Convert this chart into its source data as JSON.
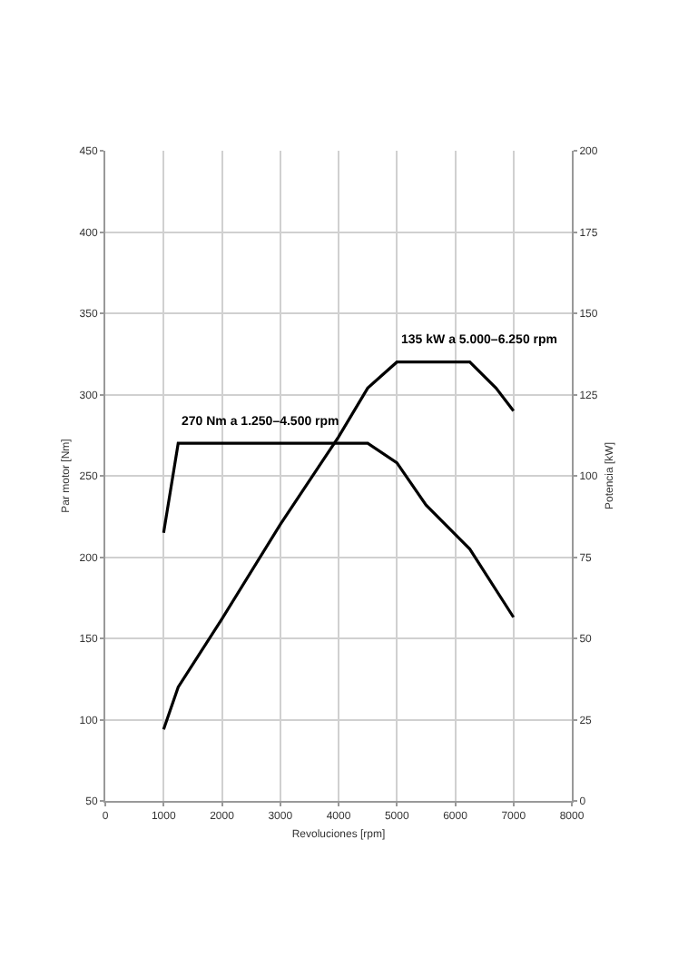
{
  "chart_data": {
    "type": "line",
    "xlabel": "Revoluciones [rpm]",
    "ylabel": "Par motor [Nm]",
    "y2label": "Potencia [kW]",
    "xlim": [
      0,
      8000
    ],
    "xticks": [
      0,
      1000,
      2000,
      3000,
      4000,
      5000,
      6000,
      7000,
      8000
    ],
    "ylim": [
      50,
      450
    ],
    "yticks": [
      50,
      100,
      150,
      200,
      250,
      300,
      350,
      400,
      450
    ],
    "y2lim": [
      0,
      200
    ],
    "y2ticks": [
      0,
      25,
      50,
      75,
      100,
      125,
      150,
      175,
      200
    ],
    "grid": true,
    "marker": "none",
    "line_style": "solid",
    "series": [
      {
        "color": "#000000",
        "x": [
          1000,
          1250,
          4500,
          5000,
          5500,
          6250,
          7000
        ],
        "values": [
          215,
          270,
          270,
          258,
          232,
          205,
          163
        ]
      },
      {
        "color": "#000000",
        "axis": "y2",
        "x": [
          1000,
          1250,
          2000,
          3000,
          4000,
          4500,
          5000,
          6250,
          6700,
          7000
        ],
        "values": [
          22,
          35,
          56,
          85,
          112,
          127,
          135,
          135,
          127,
          120
        ]
      }
    ],
    "annotations": [
      "270 Nm a 1.250–4.500 rpm",
      "135 kW a 5.000–6.250 rpm"
    ]
  }
}
